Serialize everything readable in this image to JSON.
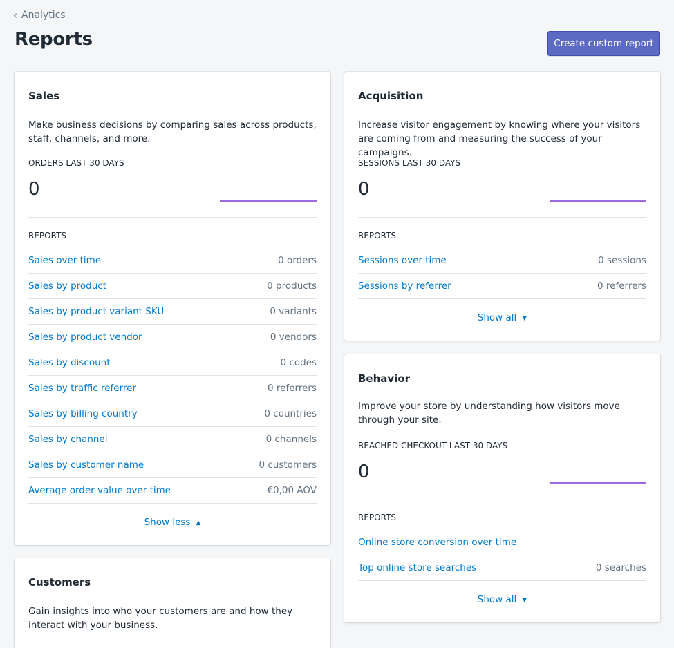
{
  "breadcrumb": {
    "label": "Analytics"
  },
  "page": {
    "title": "Reports",
    "create_button": "Create custom report"
  },
  "sales": {
    "title": "Sales",
    "description": "Make business decisions by comparing sales across products, staff, channels, and more.",
    "metric_label": "ORDERS LAST 30 DAYS",
    "metric_value": "0",
    "reports_label": "REPORTS",
    "reports": [
      {
        "name": "Sales over time",
        "count": "0 orders"
      },
      {
        "name": "Sales by product",
        "count": "0 products"
      },
      {
        "name": "Sales by product variant SKU",
        "count": "0 variants"
      },
      {
        "name": "Sales by product vendor",
        "count": "0 vendors"
      },
      {
        "name": "Sales by discount",
        "count": "0 codes"
      },
      {
        "name": "Sales by traffic referrer",
        "count": "0 referrers"
      },
      {
        "name": "Sales by billing country",
        "count": "0 countries"
      },
      {
        "name": "Sales by channel",
        "count": "0 channels"
      },
      {
        "name": "Sales by customer name",
        "count": "0 customers"
      },
      {
        "name": "Average order value over time",
        "count": "€0,00 AOV"
      }
    ],
    "toggle": "Show less"
  },
  "acquisition": {
    "title": "Acquisition",
    "description": "Increase visitor engagement by knowing where your visitors are coming from and measuring the success of your campaigns.",
    "metric_label": "SESSIONS LAST 30 DAYS",
    "metric_value": "0",
    "reports_label": "REPORTS",
    "reports": [
      {
        "name": "Sessions over time",
        "count": "0 sessions"
      },
      {
        "name": "Sessions by referrer",
        "count": "0 referrers"
      }
    ],
    "toggle": "Show all"
  },
  "behavior": {
    "title": "Behavior",
    "description": "Improve your store by understanding how visitors move through your site.",
    "metric_label": "REACHED CHECKOUT LAST 30 DAYS",
    "metric_value": "0",
    "reports_label": "REPORTS",
    "reports": [
      {
        "name": "Online store conversion over time",
        "count": ""
      },
      {
        "name": "Top online store searches",
        "count": "0 searches"
      }
    ],
    "toggle": "Show all"
  },
  "customers": {
    "title": "Customers",
    "description": "Gain insights into who your customers are and how they interact with your business."
  },
  "colors": {
    "accent": "#5c6ac4",
    "link": "#007ace",
    "sparkline": "#9c6ade"
  }
}
